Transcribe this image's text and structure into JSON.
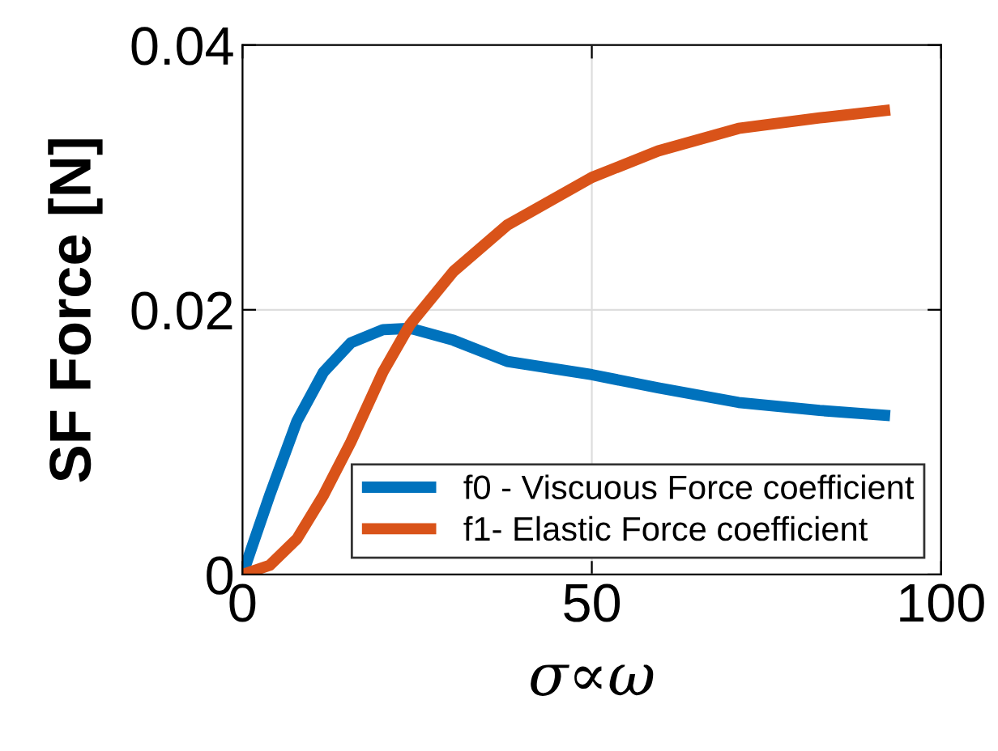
{
  "chart_data": {
    "type": "line",
    "xlabel": "σ∝ω",
    "ylabel": "SF Force [N]",
    "xlim": [
      0,
      100
    ],
    "ylim": [
      0,
      0.04
    ],
    "xticks": [
      0,
      50,
      100
    ],
    "yticks": [
      0,
      0.02,
      0.04
    ],
    "grid": true,
    "legend": "bottom right",
    "marker": "none",
    "line_style": "solid",
    "series": [
      {
        "name": "f0 - Viscuous Force coefficient",
        "color": "#0072bd",
        "x": [
          0,
          3.9,
          7.8,
          11.6,
          15.5,
          20.1,
          24,
          30.2,
          37.9,
          50,
          59.5,
          71,
          82.6,
          92.7
        ],
        "values": [
          0,
          0.006,
          0.0116,
          0.0153,
          0.0175,
          0.0185,
          0.0186,
          0.0177,
          0.0161,
          0.0151,
          0.0141,
          0.013,
          0.0124,
          0.012
        ]
      },
      {
        "name": "f1- Elastic Force coefficient",
        "color": "#d95319",
        "x": [
          0,
          3.9,
          7.8,
          11.6,
          15.5,
          20.1,
          24,
          30.2,
          37.9,
          50,
          59.5,
          71,
          82.6,
          92.7
        ],
        "values": [
          0,
          0.0007,
          0.0027,
          0.006,
          0.01,
          0.0153,
          0.0189,
          0.0229,
          0.0264,
          0.03,
          0.032,
          0.0337,
          0.0345,
          0.0351
        ]
      }
    ]
  }
}
